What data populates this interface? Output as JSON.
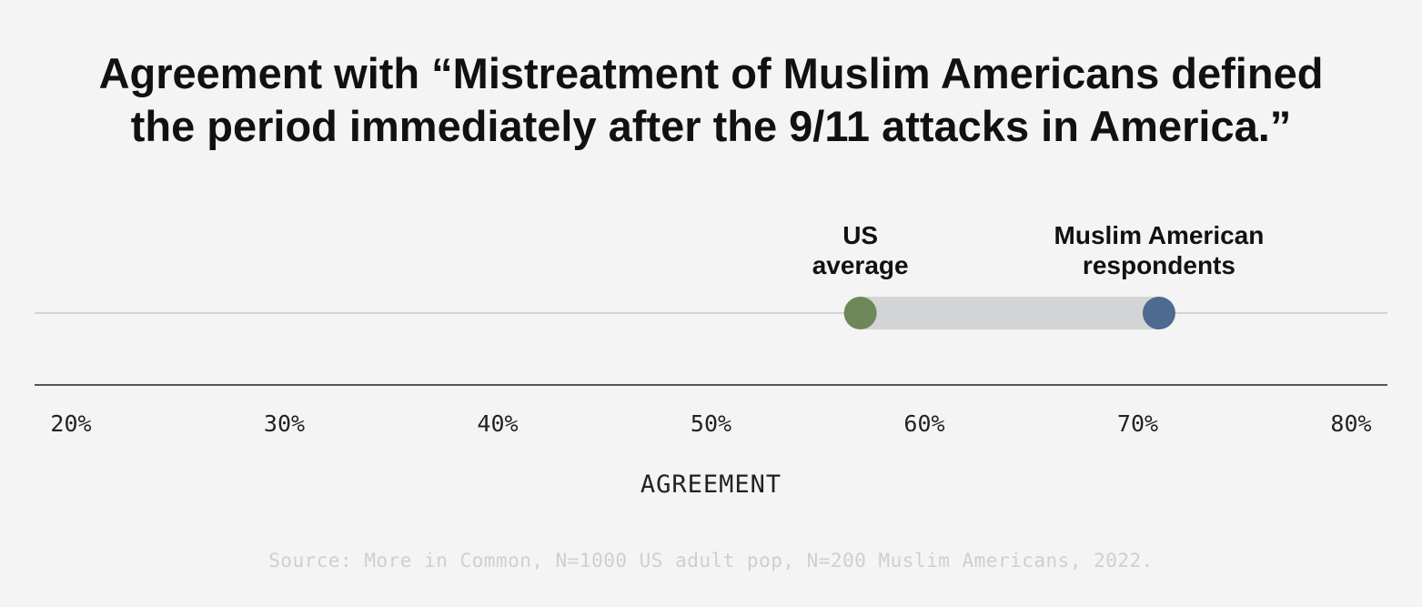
{
  "title_lines": [
    "Agreement with “Mistreatment of Muslim Americans defined",
    "the period immediately after the 9/11 attacks in America.”"
  ],
  "source": "Source: More in Common, N=1000 US adult pop, N=200 Muslim Americans, 2022.",
  "colors": {
    "background": "#f4f4f4",
    "us_average": "#6e8758",
    "muslim_american": "#4e6a91",
    "range_bar": "#d3d4d5",
    "track_line": "#d4d4d4",
    "axis_line": "#222222"
  },
  "chart_data": {
    "type": "dot-range",
    "xlabel": "AGREEMENT",
    "xlim": [
      20,
      80
    ],
    "ticks": [
      {
        "value": 20,
        "label": "20%"
      },
      {
        "value": 30,
        "label": "30%"
      },
      {
        "value": 40,
        "label": "40%"
      },
      {
        "value": 50,
        "label": "50%"
      },
      {
        "value": 60,
        "label": "60%"
      },
      {
        "value": 70,
        "label": "70%"
      },
      {
        "value": 80,
        "label": "80%"
      }
    ],
    "points": [
      {
        "key": "us-average",
        "label_lines": [
          "US",
          "average"
        ],
        "value": 57,
        "color": "#6e8758"
      },
      {
        "key": "muslim-american",
        "label_lines": [
          "Muslim American",
          "respondents"
        ],
        "value": 71,
        "color": "#4e6a91"
      }
    ],
    "grid": false,
    "legend": "none"
  }
}
